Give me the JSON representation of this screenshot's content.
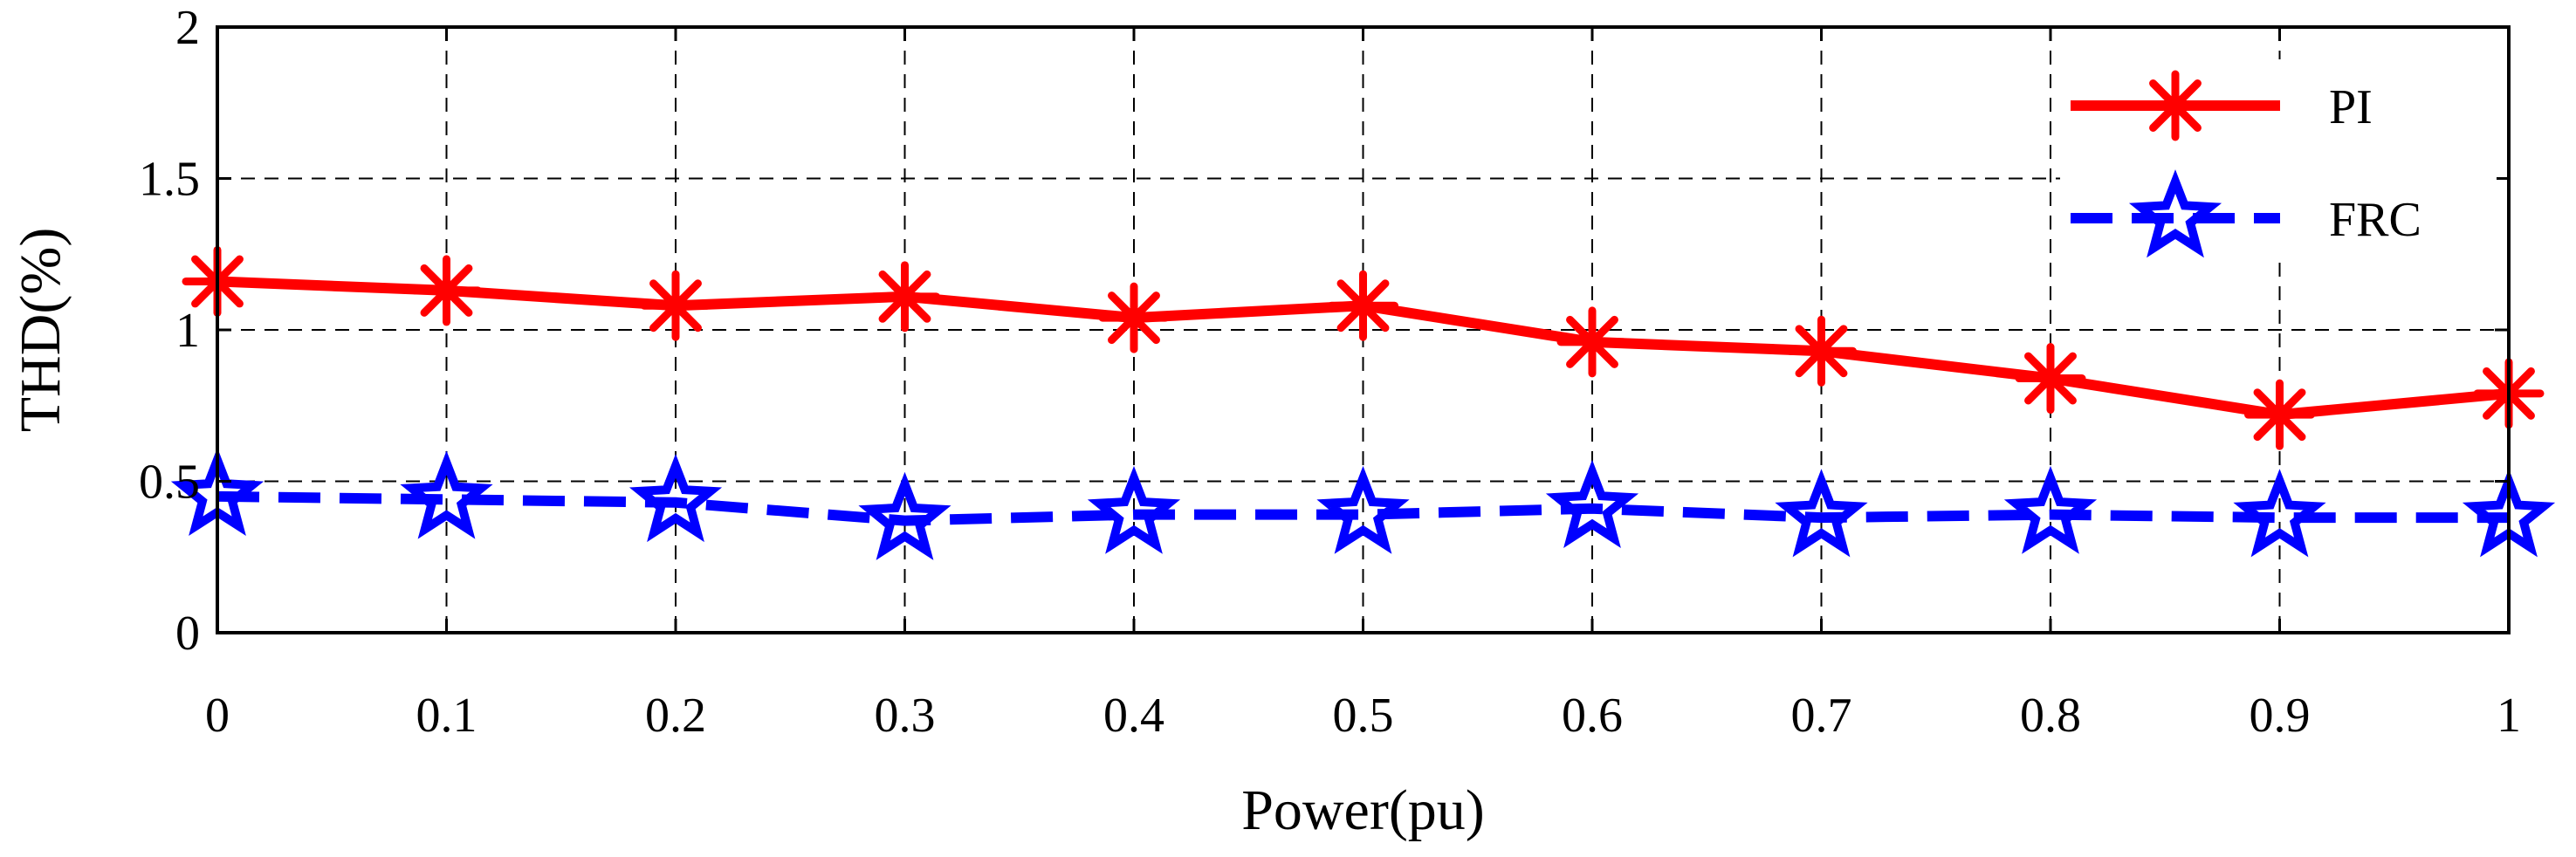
{
  "chart_data": {
    "type": "line",
    "title": "",
    "xlabel": "Power(pu)",
    "ylabel": "THD(%)",
    "x": [
      0,
      0.1,
      0.2,
      0.3,
      0.4,
      0.5,
      0.6,
      0.7,
      0.8,
      0.9,
      1
    ],
    "x_tick_labels": [
      "0",
      "0.1",
      "0.2",
      "0.3",
      "0.4",
      "0.5",
      "0.6",
      "0.7",
      "0.8",
      "0.9",
      "1"
    ],
    "y_tick_values": [
      0,
      0.5,
      1,
      1.5,
      2
    ],
    "y_tick_labels": [
      "0",
      "0.5",
      "1",
      "1.5",
      "2"
    ],
    "xlim": [
      0,
      1
    ],
    "ylim": [
      0,
      2
    ],
    "grid": true,
    "legend_position": "top-right",
    "series": [
      {
        "name": "PI",
        "color": "#ff0000",
        "marker": "asterisk",
        "linestyle": "solid",
        "values": [
          1.16,
          1.13,
          1.08,
          1.11,
          1.04,
          1.08,
          0.96,
          0.93,
          0.84,
          0.72,
          0.79
        ]
      },
      {
        "name": "FRC",
        "color": "#0000ff",
        "marker": "star",
        "linestyle": "dashed",
        "values": [
          0.45,
          0.44,
          0.43,
          0.37,
          0.39,
          0.39,
          0.41,
          0.38,
          0.39,
          0.38,
          0.38
        ]
      }
    ]
  }
}
